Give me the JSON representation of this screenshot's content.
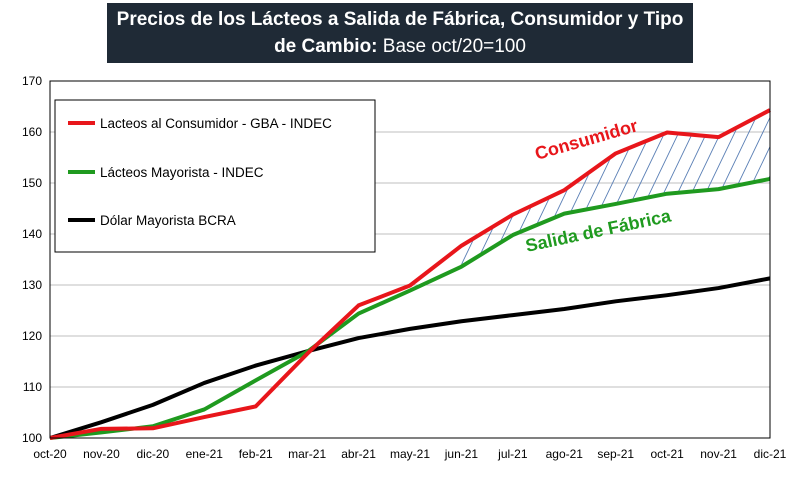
{
  "chart_data": {
    "type": "line",
    "title_bold": "Precios de los Lácteos a Salida de Fábrica, Consumidor y Tipo de Cambio:",
    "title_regular": "Base oct/20=100",
    "categories": [
      "oct-20",
      "nov-20",
      "dic-20",
      "ene-21",
      "feb-21",
      "mar-21",
      "abr-21",
      "may-21",
      "jun-21",
      "jul-21",
      "ago-21",
      "sep-21",
      "oct-21",
      "nov-21",
      "dic-21"
    ],
    "ylim": [
      100,
      170
    ],
    "yticks": [
      100,
      110,
      120,
      130,
      140,
      150,
      160,
      170
    ],
    "series": [
      {
        "name": "Lacteos al Consumidor - GBA - INDEC",
        "color": "#e8161b",
        "values": [
          100,
          101.8,
          101.9,
          104.1,
          106.2,
          116.5,
          126.0,
          129.9,
          137.7,
          143.8,
          148.6,
          155.8,
          159.9,
          159.0,
          164.3
        ]
      },
      {
        "name": "Lácteos Mayorista - INDEC",
        "color": "#1f9a1f",
        "values": [
          100,
          101.1,
          102.3,
          105.6,
          111.3,
          116.9,
          124.4,
          128.9,
          133.6,
          139.8,
          144.0,
          145.9,
          147.9,
          148.8,
          150.8
        ]
      },
      {
        "name": "Dólar Mayorista BCRA",
        "color": "#000000",
        "values": [
          100,
          103.1,
          106.5,
          110.8,
          114.2,
          117.0,
          119.6,
          121.4,
          122.9,
          124.1,
          125.3,
          126.8,
          128.0,
          129.4,
          131.3
        ]
      }
    ],
    "annotations": [
      {
        "text": "Consumidor",
        "color": "#e8161b"
      },
      {
        "text": "Salida de Fábrica",
        "color": "#1f9a1f"
      }
    ],
    "legend_position": "top-left",
    "grid": "horizontal"
  }
}
